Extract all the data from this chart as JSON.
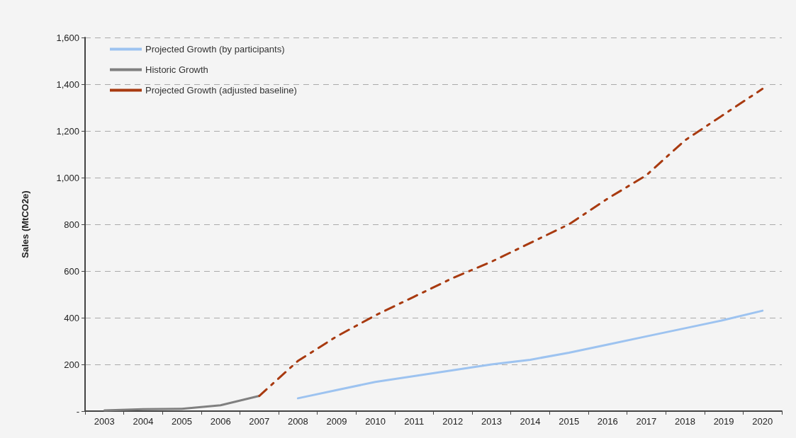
{
  "chart_data": {
    "type": "line",
    "ylabel": "Sales (MtCO2e)",
    "categories": [
      "2003",
      "2004",
      "2005",
      "2006",
      "2007",
      "2008",
      "2009",
      "2010",
      "2011",
      "2012",
      "2013",
      "2014",
      "2015",
      "2016",
      "2017",
      "2018",
      "2019",
      "2020"
    ],
    "series": [
      {
        "name": "Projected Growth (by participants)",
        "color": "#9dc3f0",
        "line_style": "solid",
        "values": [
          null,
          null,
          null,
          null,
          null,
          55,
          90,
          125,
          150,
          175,
          200,
          220,
          250,
          285,
          320,
          355,
          390,
          430
        ]
      },
      {
        "name": "Historic Growth",
        "color": "#808080",
        "line_style": "solid",
        "values": [
          3,
          8,
          10,
          25,
          65,
          null,
          null,
          null,
          null,
          null,
          null,
          null,
          null,
          null,
          null,
          null,
          null,
          null
        ]
      },
      {
        "name": "Projected Growth (adjusted baseline)",
        "color": "#a83a10",
        "line_style": "dashed",
        "values": [
          null,
          null,
          null,
          null,
          65,
          215,
          320,
          410,
          490,
          570,
          640,
          720,
          800,
          910,
          1010,
          1160,
          1270,
          1380
        ]
      }
    ],
    "ylim": [
      0,
      1600
    ],
    "yticks": [
      {
        "value": 0,
        "label": "-"
      },
      200,
      400,
      600,
      800,
      {
        "value": 1000,
        "label": "1,000"
      },
      {
        "value": 1200,
        "label": "1,200"
      },
      {
        "value": 1400,
        "label": "1,400"
      },
      {
        "value": 1600,
        "label": "1,600"
      }
    ],
    "grid": "y",
    "legend": "top left",
    "marker": "none"
  }
}
